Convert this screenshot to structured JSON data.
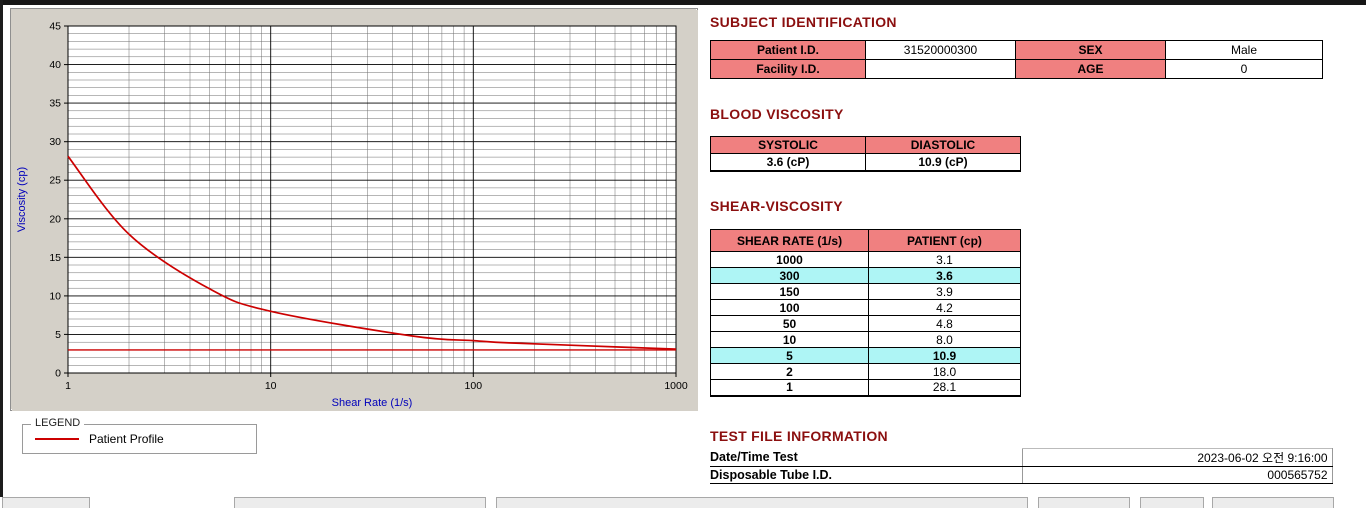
{
  "subject_identification": {
    "title": "SUBJECT IDENTIFICATION",
    "rows": [
      {
        "label1": "Patient I.D.",
        "value1": "31520000300",
        "label2": "SEX",
        "value2": "Male"
      },
      {
        "label1": "Facility I.D.",
        "value1": "",
        "label2": "AGE",
        "value2": "0"
      }
    ]
  },
  "blood_viscosity": {
    "title": "BLOOD VISCOSITY",
    "headers": [
      "SYSTOLIC",
      "DIASTOLIC"
    ],
    "values": [
      "3.6 (cP)",
      "10.9 (cP)"
    ]
  },
  "shear_viscosity": {
    "title": "SHEAR-VISCOSITY",
    "headers": [
      "SHEAR RATE (1/s)",
      "PATIENT (cp)"
    ],
    "rows": [
      {
        "rate": "1000",
        "value": "3.1",
        "highlight": false
      },
      {
        "rate": "300",
        "value": "3.6",
        "highlight": true
      },
      {
        "rate": "150",
        "value": "3.9",
        "highlight": false
      },
      {
        "rate": "100",
        "value": "4.2",
        "highlight": false
      },
      {
        "rate": "50",
        "value": "4.8",
        "highlight": false
      },
      {
        "rate": "10",
        "value": "8.0",
        "highlight": false
      },
      {
        "rate": "5",
        "value": "10.9",
        "highlight": true
      },
      {
        "rate": "2",
        "value": "18.0",
        "highlight": false
      },
      {
        "rate": "1",
        "value": "28.1",
        "highlight": false
      }
    ]
  },
  "test_file_information": {
    "title": "TEST FILE INFORMATION",
    "rows": [
      {
        "label": "Date/Time Test",
        "value": "2023-06-02  오전 9:16:00"
      },
      {
        "label": "Disposable Tube I.D.",
        "value": "000565752"
      }
    ]
  },
  "legend": {
    "box_label": "LEGEND",
    "series_label": "Patient Profile"
  },
  "chart_data": {
    "type": "line",
    "title": "",
    "xlabel": "Shear Rate (1/s)",
    "ylabel": "Viscosity (cp)",
    "x_scale": "log",
    "xlim": [
      1,
      1000
    ],
    "ylim": [
      0,
      45
    ],
    "x_major_ticks": [
      1,
      10,
      100,
      1000
    ],
    "y_major_ticks": [
      0,
      5,
      10,
      15,
      20,
      25,
      30,
      35,
      40,
      45
    ],
    "grid": true,
    "x": [
      1,
      2,
      5,
      10,
      50,
      100,
      150,
      300,
      1000
    ],
    "series": [
      {
        "name": "Patient Profile",
        "values": [
          28.1,
          18.0,
          10.9,
          8.0,
          4.8,
          4.2,
          3.9,
          3.6,
          3.1
        ],
        "color": "#cc0000"
      }
    ],
    "baseline": 3.0,
    "legend_position": "below-left"
  },
  "colors": {
    "section_title": "#8b0f0f",
    "table_header_bg": "#f08080",
    "highlight_bg": "#aef5f5",
    "series_line": "#cc0000",
    "axis_label": "#0000bb"
  }
}
